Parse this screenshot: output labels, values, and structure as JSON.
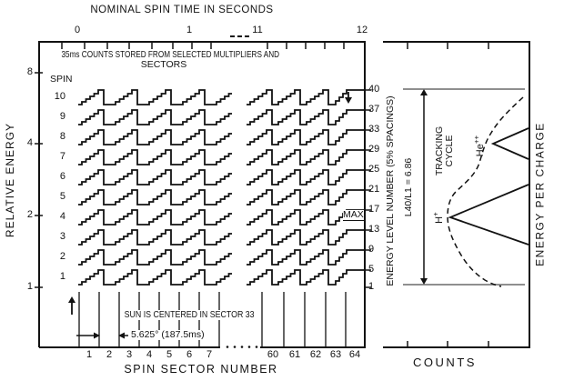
{
  "colors": {
    "ink": "#121212",
    "gray": "#8f8f8f",
    "bg": "#ffffff"
  },
  "top_axis": {
    "title": "NOMINAL SPIN TIME IN SECONDS",
    "tick_labels": [
      "0",
      "1",
      "11",
      "12"
    ],
    "break_marks": "- - -"
  },
  "left_axis": {
    "label": "RELATIVE ENERGY",
    "tick_labels": [
      "8",
      "4",
      "2",
      "1"
    ]
  },
  "main_panel": {
    "note_line1": "35ms COUNTS STORED FROM SELECTED MULTIPLIERS AND",
    "note_line2": "SECTORS",
    "spin_header": "SPIN",
    "spins": [
      "10",
      "9",
      "8",
      "7",
      "6",
      "5",
      "4",
      "3",
      "2",
      "1"
    ],
    "max_label": "MAX",
    "sun_note": "SUN IS CENTERED IN SECTOR 33",
    "sector_width_note": "5.625° (187.5ms)"
  },
  "right_levels": {
    "label": "ENERGY LEVEL NUMBER (5% SPACINGS)",
    "tick_labels": [
      "40",
      "37",
      "33",
      "29",
      "25",
      "21",
      "17",
      "13",
      "9",
      "5",
      "1"
    ]
  },
  "bottom_axis": {
    "label": "SPIN SECTOR NUMBER",
    "sectors_left": [
      "1",
      "2",
      "3",
      "4",
      "5",
      "6",
      "7"
    ],
    "sectors_right": [
      "60",
      "61",
      "62",
      "63",
      "64"
    ]
  },
  "right_panel": {
    "ratio_label": "L40/L1 = 6.86",
    "tracking_label": [
      "TRACKING",
      "CYCLE"
    ],
    "ions": [
      {
        "base": "H",
        "charge": "+"
      },
      {
        "base": "He",
        "charge": "++"
      }
    ],
    "counts_label": "COUNTS",
    "energy_label": "ENERGY PER CHARGE"
  }
}
